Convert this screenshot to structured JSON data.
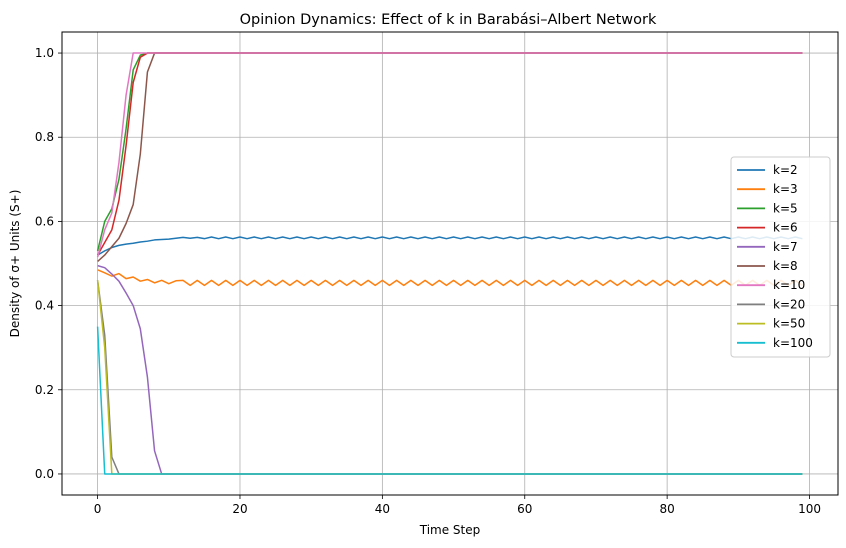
{
  "chart_data": {
    "type": "line",
    "title": "Opinion Dynamics: Effect of k in Barabási–Albert Network",
    "xlabel": "Time Step",
    "ylabel": "Density of σ+ Units (S+)",
    "xlim": [
      -5,
      104
    ],
    "ylim": [
      -0.05,
      1.05
    ],
    "xticks": [
      0,
      20,
      40,
      60,
      80,
      100
    ],
    "yticks": [
      0.0,
      0.2,
      0.4,
      0.6,
      0.8,
      1.0
    ],
    "xtick_labels": [
      "0",
      "20",
      "40",
      "60",
      "80",
      "100"
    ],
    "ytick_labels": [
      "0.0",
      "0.2",
      "0.4",
      "0.6",
      "0.8",
      "1.0"
    ],
    "grid": true,
    "legend_position": "center-right",
    "colors": {
      "k=2": "#1f77b4",
      "k=3": "#ff7f0e",
      "k=5": "#2ca02c",
      "k=6": "#d62728",
      "k=7": "#9467bd",
      "k=8": "#8c564b",
      "k=10": "#e377c2",
      "k=20": "#7f7f7f",
      "k=50": "#bcbd22",
      "k=100": "#17becf"
    },
    "series": [
      {
        "name": "k=2",
        "x_end": 99,
        "points": [
          [
            0,
            0.52
          ],
          [
            1,
            0.53
          ],
          [
            2,
            0.538
          ],
          [
            3,
            0.543
          ],
          [
            4,
            0.546
          ],
          [
            5,
            0.548
          ],
          [
            6,
            0.551
          ],
          [
            7,
            0.553
          ],
          [
            8,
            0.556
          ],
          [
            9,
            0.557
          ],
          [
            10,
            0.558
          ],
          [
            11,
            0.56
          ],
          [
            12,
            0.562
          ],
          [
            13,
            0.56
          ],
          [
            14,
            0.562
          ]
        ],
        "osc": {
          "center": 0.561,
          "amp": 0.002
        }
      },
      {
        "name": "k=3",
        "x_end": 99,
        "points": [
          [
            0,
            0.485
          ],
          [
            1,
            0.478
          ],
          [
            2,
            0.47
          ],
          [
            3,
            0.476
          ],
          [
            4,
            0.464
          ],
          [
            5,
            0.468
          ],
          [
            6,
            0.458
          ],
          [
            7,
            0.462
          ],
          [
            8,
            0.454
          ],
          [
            9,
            0.46
          ],
          [
            10,
            0.452
          ],
          [
            11,
            0.459
          ]
        ],
        "osc": {
          "center": 0.454,
          "amp": 0.006
        }
      },
      {
        "name": "k=5",
        "x_end": 99,
        "points": [
          [
            0,
            0.53
          ],
          [
            1,
            0.6
          ],
          [
            2,
            0.63
          ],
          [
            3,
            0.7
          ],
          [
            4,
            0.82
          ],
          [
            5,
            0.96
          ],
          [
            6,
            0.995
          ],
          [
            7,
            1.0
          ]
        ],
        "osc": null
      },
      {
        "name": "k=6",
        "x_end": 99,
        "points": [
          [
            0,
            0.52
          ],
          [
            1,
            0.55
          ],
          [
            2,
            0.58
          ],
          [
            3,
            0.65
          ],
          [
            4,
            0.78
          ],
          [
            5,
            0.93
          ],
          [
            6,
            0.99
          ],
          [
            7,
            1.0
          ]
        ],
        "osc": null
      },
      {
        "name": "k=7",
        "x_end": 99,
        "points": [
          [
            0,
            0.495
          ],
          [
            1,
            0.49
          ],
          [
            2,
            0.475
          ],
          [
            3,
            0.458
          ],
          [
            4,
            0.43
          ],
          [
            5,
            0.4
          ],
          [
            6,
            0.345
          ],
          [
            7,
            0.23
          ],
          [
            8,
            0.055
          ],
          [
            9,
            0.0
          ]
        ],
        "osc": null
      },
      {
        "name": "k=8",
        "x_end": 99,
        "points": [
          [
            0,
            0.505
          ],
          [
            1,
            0.52
          ],
          [
            2,
            0.54
          ],
          [
            3,
            0.56
          ],
          [
            4,
            0.595
          ],
          [
            5,
            0.64
          ],
          [
            6,
            0.76
          ],
          [
            7,
            0.955
          ],
          [
            8,
            1.0
          ]
        ],
        "osc": null
      },
      {
        "name": "k=10",
        "x_end": 99,
        "points": [
          [
            0,
            0.515
          ],
          [
            1,
            0.58
          ],
          [
            2,
            0.62
          ],
          [
            3,
            0.74
          ],
          [
            4,
            0.9
          ],
          [
            5,
            1.0
          ]
        ],
        "osc": null
      },
      {
        "name": "k=20",
        "x_end": 99,
        "points": [
          [
            0,
            0.46
          ],
          [
            1,
            0.33
          ],
          [
            2,
            0.04
          ],
          [
            3,
            0.0
          ]
        ],
        "osc": null
      },
      {
        "name": "k=50",
        "x_end": 99,
        "points": [
          [
            0,
            0.46
          ],
          [
            1,
            0.3
          ],
          [
            2,
            0.0
          ]
        ],
        "osc": null
      },
      {
        "name": "k=100",
        "x_end": 99,
        "points": [
          [
            0,
            0.35
          ],
          [
            1,
            0.0
          ]
        ],
        "osc": null
      }
    ]
  }
}
